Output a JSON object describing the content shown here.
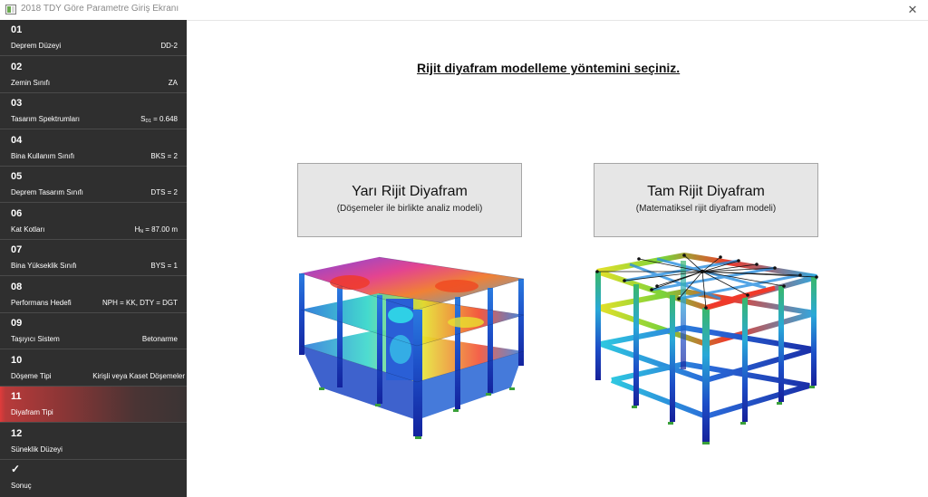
{
  "window": {
    "title": "2018 TDY Göre Parametre Giriş Ekranı",
    "close_glyph": "✕"
  },
  "sidebar": {
    "steps": [
      {
        "number": "01",
        "label": "Deprem Düzeyi",
        "value": "DD-2"
      },
      {
        "number": "02",
        "label": "Zemin Sınıfı",
        "value": "ZA"
      },
      {
        "number": "03",
        "label": "Tasarım Spektrumları",
        "value_main": "S",
        "value_sub": "D1",
        "value_rest": " = 0.648"
      },
      {
        "number": "04",
        "label": "Bina Kullanım Sınıfı",
        "value": "BKS = 2"
      },
      {
        "number": "05",
        "label": "Deprem Tasarım Sınıfı",
        "value": "DTS = 2"
      },
      {
        "number": "06",
        "label": "Kat Kotları",
        "value_main": "H",
        "value_sub": "N",
        "value_rest": " = 87.00 m"
      },
      {
        "number": "07",
        "label": "Bina Yükseklik Sınıfı",
        "value": "BYS = 1"
      },
      {
        "number": "08",
        "label": "Performans Hedefi",
        "value": "NPH = KK, DTY = DGT"
      },
      {
        "number": "09",
        "label": "Taşıyıcı Sistem",
        "value": "Betonarme"
      },
      {
        "number": "10",
        "label": "Döşeme Tipi",
        "value": "Kirişli veya Kaset Döşemeler"
      },
      {
        "number": "11",
        "label": "Diyafram Tipi",
        "value": ""
      },
      {
        "number": "12",
        "label": "Süneklik Düzeyi",
        "value": ""
      }
    ],
    "result": {
      "check": "✓",
      "label": "Sonuç"
    }
  },
  "main": {
    "heading": "Rijit diyafram modelleme yöntemini seçiniz.",
    "options": [
      {
        "title": "Yarı Rijit Diyafram",
        "subtitle": "(Döşemeler ile birlikte analiz modeli)"
      },
      {
        "title": "Tam Rijit Diyafram",
        "subtitle": "(Matematiksel rijit diyafram modeli)"
      }
    ]
  },
  "colors": {
    "active_step": "#e03b3b",
    "sidebar_bg": "#2f2f2f",
    "button_bg": "#e6e6e6"
  }
}
